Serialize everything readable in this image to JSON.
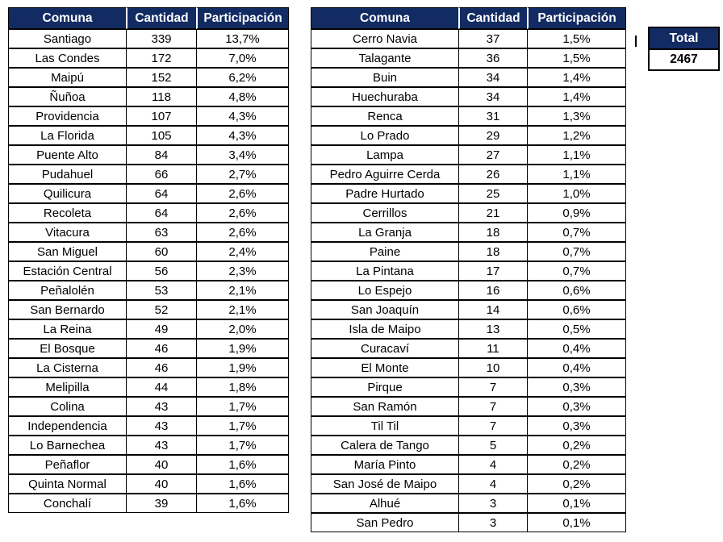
{
  "colors": {
    "header_bg": "#122b63",
    "header_text": "#ffffff",
    "border": "#000000",
    "cell_bg": "#ffffff"
  },
  "total": {
    "label": "Total",
    "value": "2467"
  },
  "chart_data": [
    {
      "type": "table",
      "title": "Comunas por cantidad (columna izquierda)",
      "columns": [
        "Comuna",
        "Cantidad",
        "Participación"
      ],
      "rows": [
        [
          "Santiago",
          "339",
          "13,7%"
        ],
        [
          "Las Condes",
          "172",
          "7,0%"
        ],
        [
          "Maipú",
          "152",
          "6,2%"
        ],
        [
          "Ñuñoa",
          "118",
          "4,8%"
        ],
        [
          "Providencia",
          "107",
          "4,3%"
        ],
        [
          "La Florida",
          "105",
          "4,3%"
        ],
        [
          "Puente Alto",
          "84",
          "3,4%"
        ],
        [
          "Pudahuel",
          "66",
          "2,7%"
        ],
        [
          "Quilicura",
          "64",
          "2,6%"
        ],
        [
          "Recoleta",
          "64",
          "2,6%"
        ],
        [
          "Vitacura",
          "63",
          "2,6%"
        ],
        [
          "San Miguel",
          "60",
          "2,4%"
        ],
        [
          "Estación Central",
          "56",
          "2,3%"
        ],
        [
          "Peñalolén",
          "53",
          "2,1%"
        ],
        [
          "San Bernardo",
          "52",
          "2,1%"
        ],
        [
          "La Reina",
          "49",
          "2,0%"
        ],
        [
          "El Bosque",
          "46",
          "1,9%"
        ],
        [
          "La Cisterna",
          "46",
          "1,9%"
        ],
        [
          "Melipilla",
          "44",
          "1,8%"
        ],
        [
          "Colina",
          "43",
          "1,7%"
        ],
        [
          "Independencia",
          "43",
          "1,7%"
        ],
        [
          "Lo Barnechea",
          "43",
          "1,7%"
        ],
        [
          "Peñaflor",
          "40",
          "1,6%"
        ],
        [
          "Quinta Normal",
          "40",
          "1,6%"
        ],
        [
          "Conchalí",
          "39",
          "1,6%"
        ]
      ]
    },
    {
      "type": "table",
      "title": "Comunas por cantidad (columna derecha)",
      "columns": [
        "Comuna",
        "Cantidad",
        "Participación"
      ],
      "rows": [
        [
          "Cerro Navia",
          "37",
          "1,5%"
        ],
        [
          "Talagante",
          "36",
          "1,5%"
        ],
        [
          "Buin",
          "34",
          "1,4%"
        ],
        [
          "Huechuraba",
          "34",
          "1,4%"
        ],
        [
          "Renca",
          "31",
          "1,3%"
        ],
        [
          "Lo Prado",
          "29",
          "1,2%"
        ],
        [
          "Lampa",
          "27",
          "1,1%"
        ],
        [
          "Pedro Aguirre Cerda",
          "26",
          "1,1%"
        ],
        [
          "Padre Hurtado",
          "25",
          "1,0%"
        ],
        [
          "Cerrillos",
          "21",
          "0,9%"
        ],
        [
          "La Granja",
          "18",
          "0,7%"
        ],
        [
          "Paine",
          "18",
          "0,7%"
        ],
        [
          "La Pintana",
          "17",
          "0,7%"
        ],
        [
          "Lo Espejo",
          "16",
          "0,6%"
        ],
        [
          "San Joaquín",
          "14",
          "0,6%"
        ],
        [
          "Isla de Maipo",
          "13",
          "0,5%"
        ],
        [
          "Curacaví",
          "11",
          "0,4%"
        ],
        [
          "El Monte",
          "10",
          "0,4%"
        ],
        [
          "Pirque",
          "7",
          "0,3%"
        ],
        [
          "San Ramón",
          "7",
          "0,3%"
        ],
        [
          "Til Til",
          "7",
          "0,3%"
        ],
        [
          "Calera de Tango",
          "5",
          "0,2%"
        ],
        [
          "María Pinto",
          "4",
          "0,2%"
        ],
        [
          "San José de Maipo",
          "4",
          "0,2%"
        ],
        [
          "Alhué",
          "3",
          "0,1%"
        ],
        [
          "San Pedro",
          "3",
          "0,1%"
        ]
      ]
    },
    {
      "type": "table",
      "title": "Total",
      "columns": [
        "Total"
      ],
      "rows": [
        [
          "2467"
        ]
      ]
    }
  ]
}
